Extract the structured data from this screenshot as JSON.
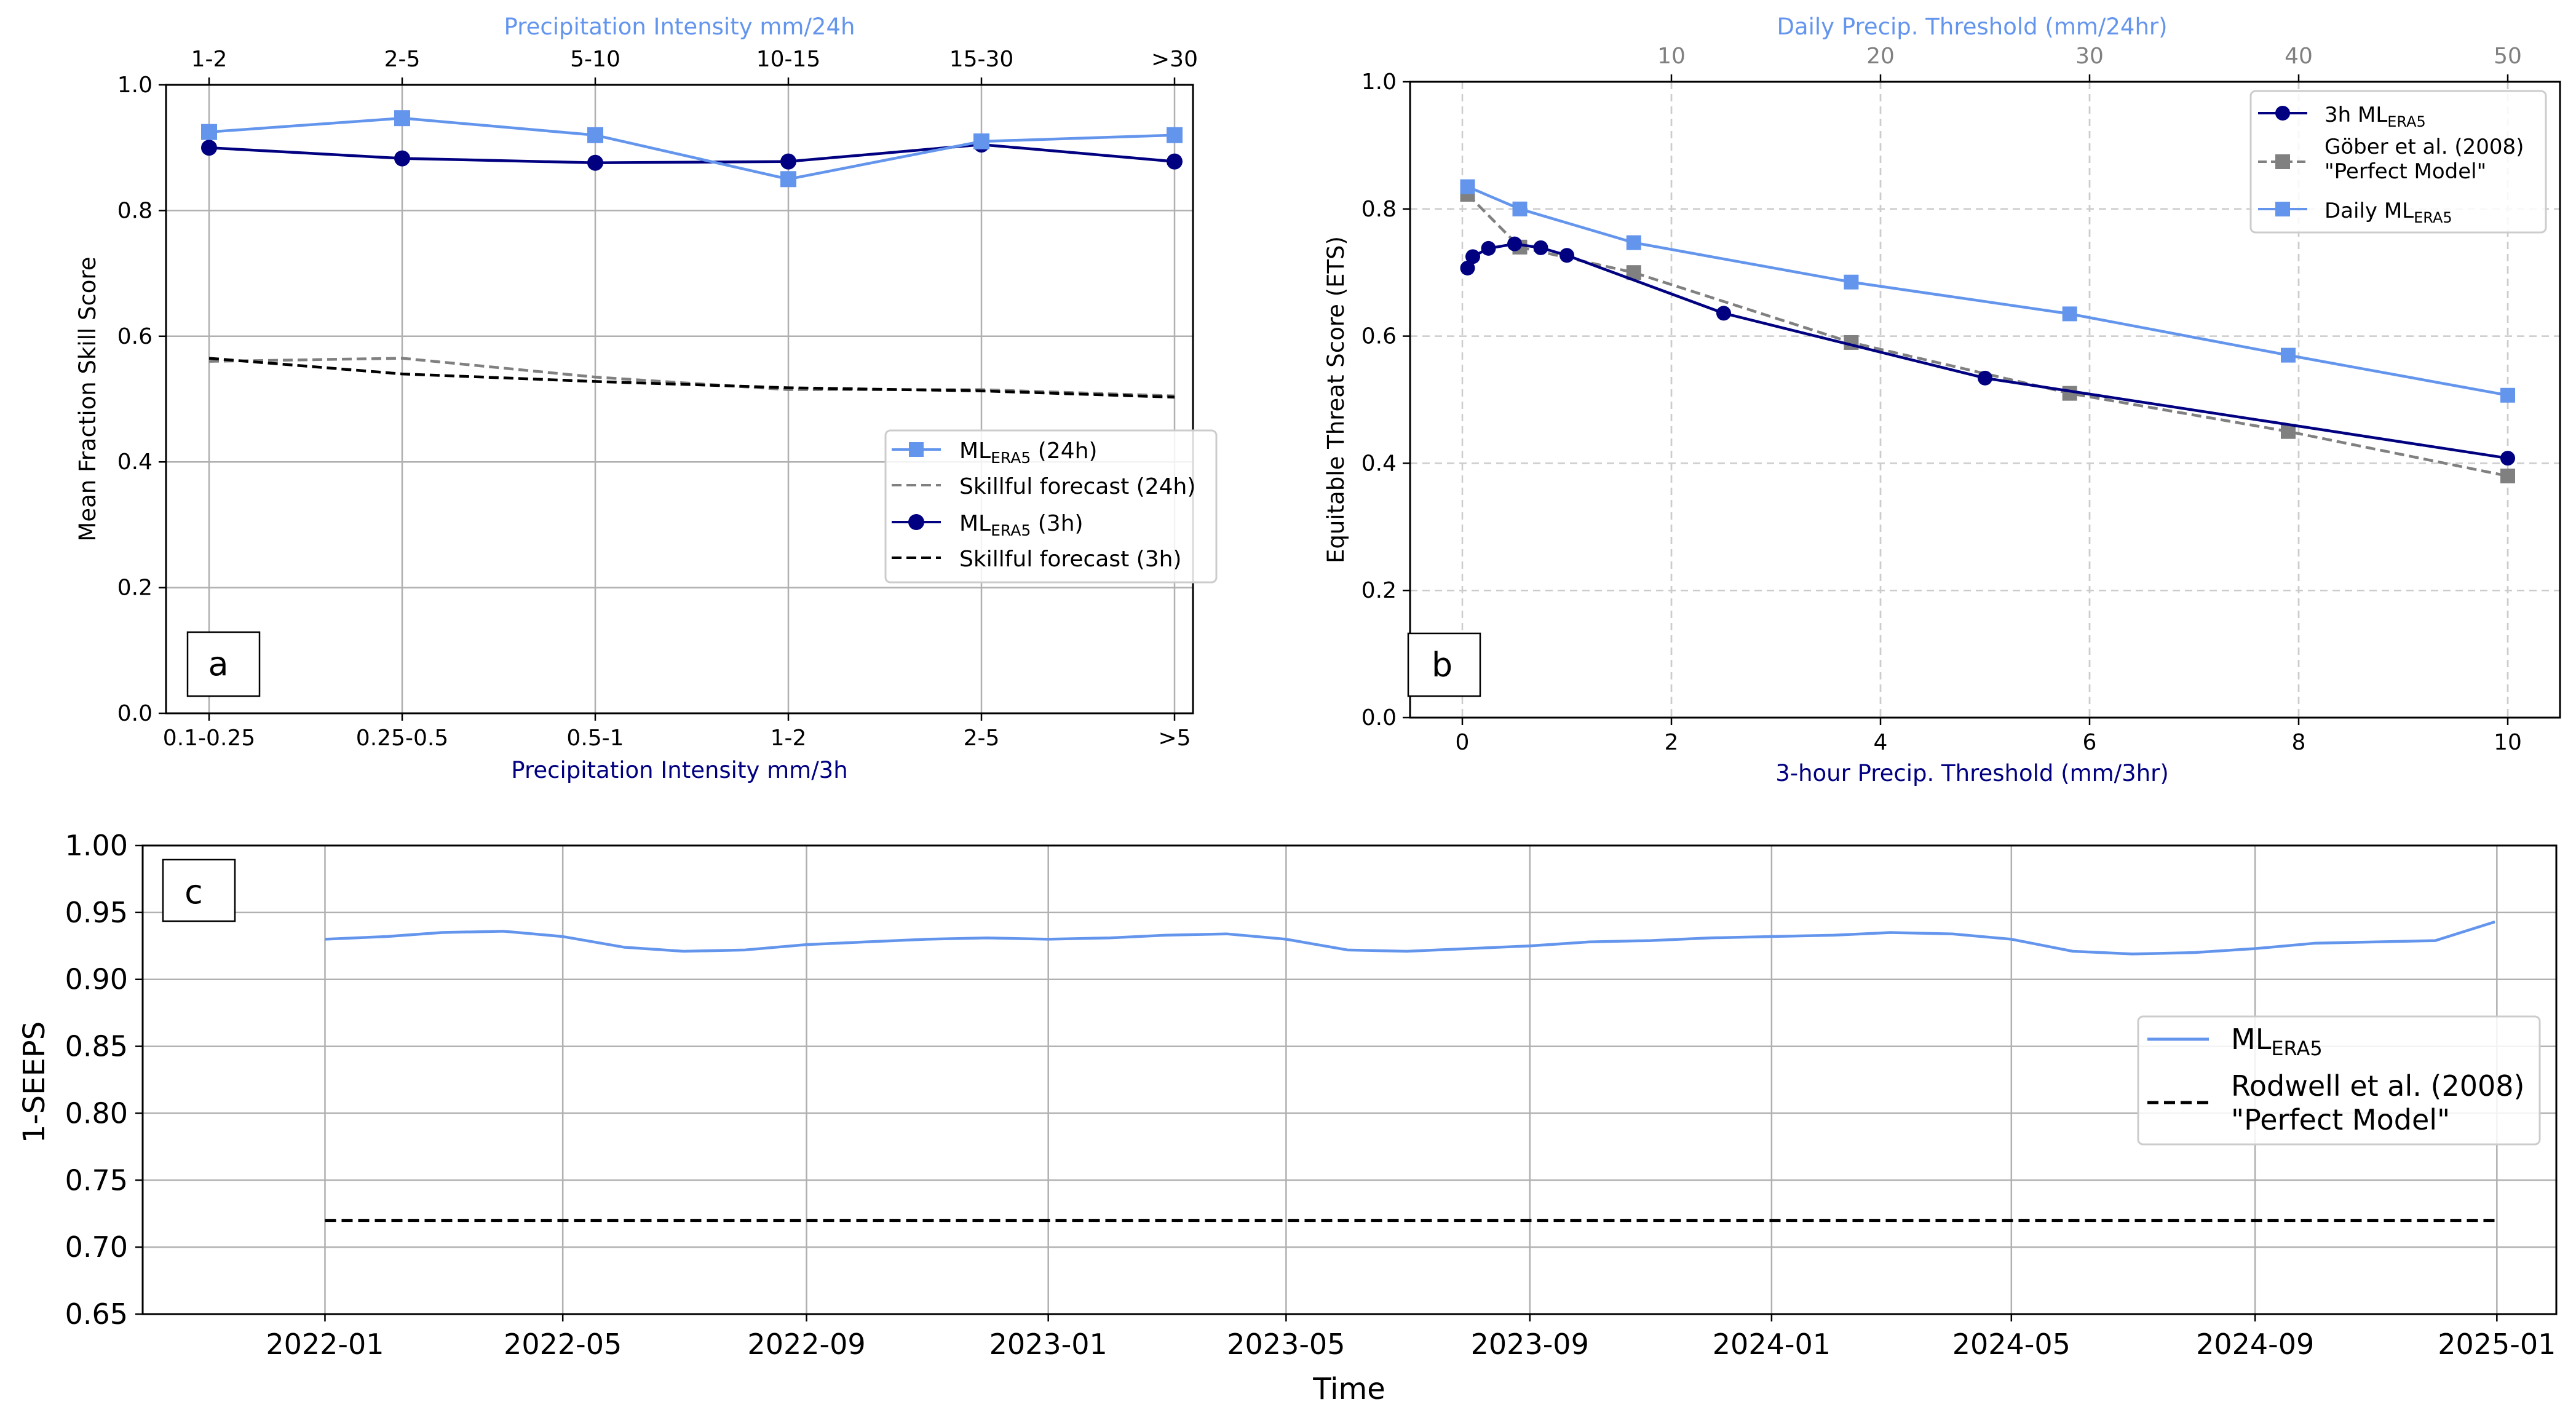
{
  "figure": {
    "colors": {
      "ml_24h": "#6495ED",
      "ml_3h": "#000080",
      "skill_24h": "#808080",
      "skill_3h": "#000000",
      "gober": "#808080",
      "grid": "#b0b0b0"
    },
    "panels": {
      "a": {
        "label": "a",
        "top_xlabel": "Precipitation Intensity mm/24h",
        "top_ticks": [
          "1-2",
          "2-5",
          "5-10",
          "10-15",
          "15-30",
          ">30"
        ],
        "xlabel": "Precipitation Intensity mm/3h",
        "ylabel": "Mean Fraction Skill Score",
        "legend": [
          "ML",
          "ERA5",
          " (24h)",
          "Skillful forecast (24h)",
          "ML",
          "ERA5",
          " (3h)",
          "Skillful forecast (3h)"
        ]
      },
      "b": {
        "label": "b",
        "top_xlabel": "Daily Precip. Threshold (mm/24hr)",
        "xlabel": "3-hour Precip. Threshold (mm/3hr)",
        "ylabel": "Equitable Threat Score (ETS)",
        "legend": [
          "3h ML",
          "ERA5",
          "Göber et al. (2008)",
          "\"Perfect Model\"",
          "Daily ML",
          "ERA5"
        ]
      },
      "c": {
        "label": "c",
        "xlabel": "Time",
        "ylabel": "1-SEEPS",
        "legend": [
          "ML",
          "ERA5",
          "Rodwell et al. (2008)",
          "\"Perfect Model\""
        ]
      }
    }
  },
  "chart_data": [
    {
      "type": "line",
      "panel": "a",
      "categories": [
        "0.1-0.25",
        "0.25-0.5",
        "0.5-1",
        "1-2",
        "2-5",
        ">5"
      ],
      "top_categories": [
        "1-2",
        "2-5",
        "5-10",
        "10-15",
        "15-30",
        ">30"
      ],
      "ylim": [
        0,
        1.0
      ],
      "yticks": [
        0.0,
        0.2,
        0.4,
        0.6,
        0.8,
        1.0
      ],
      "grid": true,
      "legend_position": "center-right",
      "series": [
        {
          "name": "ML_ERA5 (24h)",
          "values": [
            0.925,
            0.947,
            0.92,
            0.85,
            0.91,
            0.92
          ],
          "marker": "square",
          "style": "solid",
          "color": "#6495ED"
        },
        {
          "name": "Skillful forecast (24h)",
          "values": [
            0.56,
            0.565,
            0.535,
            0.515,
            0.515,
            0.505
          ],
          "style": "dashed",
          "color": "#808080"
        },
        {
          "name": "ML_ERA5 (3h)",
          "values": [
            0.9,
            0.883,
            0.876,
            0.878,
            0.905,
            0.878
          ],
          "marker": "circle",
          "style": "solid",
          "color": "#000080"
        },
        {
          "name": "Skillful forecast (3h)",
          "values": [
            0.565,
            0.54,
            0.528,
            0.518,
            0.513,
            0.503
          ],
          "style": "dashed",
          "color": "#000000"
        }
      ]
    },
    {
      "type": "line",
      "panel": "b",
      "xlim": [
        -0.5,
        10.5
      ],
      "xticks": [
        0,
        2,
        4,
        6,
        8,
        10
      ],
      "top_xticks": [
        10,
        20,
        30,
        40,
        50
      ],
      "ylim": [
        0,
        1.0
      ],
      "yticks": [
        0.0,
        0.2,
        0.4,
        0.6,
        0.8,
        1.0
      ],
      "grid": true,
      "legend_position": "top-right",
      "series": [
        {
          "name": "3h ML_ERA5",
          "marker": "circle",
          "style": "solid",
          "color": "#000080",
          "x": [
            0.05,
            0.1,
            0.25,
            0.5,
            0.75,
            1.0,
            2.5,
            5.0,
            10.0
          ],
          "y": [
            0.707,
            0.725,
            0.738,
            0.745,
            0.739,
            0.727,
            0.636,
            0.534,
            0.408
          ]
        },
        {
          "name": "Göber et al. (2008) \"Perfect Model\"",
          "marker": "square",
          "style": "dashed",
          "color": "#808080",
          "x": [
            0.05,
            0.55,
            1.64,
            3.72,
            5.81,
            7.9,
            10.0
          ],
          "y": [
            0.823,
            0.74,
            0.7,
            0.59,
            0.51,
            0.45,
            0.38
          ]
        },
        {
          "name": "Daily ML_ERA5",
          "marker": "square",
          "style": "solid",
          "color": "#6495ED",
          "x": [
            0.05,
            0.55,
            1.64,
            3.72,
            5.81,
            7.9,
            10.0
          ],
          "y": [
            0.835,
            0.8,
            0.747,
            0.685,
            0.635,
            0.57,
            0.507
          ]
        }
      ]
    },
    {
      "type": "line",
      "panel": "c",
      "xlim": [
        "2021-10-01",
        "2025-01-31"
      ],
      "xticks": [
        "2022-01",
        "2022-05",
        "2022-09",
        "2023-01",
        "2023-05",
        "2023-09",
        "2024-01",
        "2024-05",
        "2024-09",
        "2025-01"
      ],
      "ylim": [
        0.65,
        1.0
      ],
      "yticks": [
        0.65,
        0.7,
        0.75,
        0.8,
        0.85,
        0.9,
        0.95,
        1.0
      ],
      "grid": true,
      "legend_position": "center-right",
      "series": [
        {
          "name": "ML_ERA5",
          "style": "solid",
          "color": "#6495ED",
          "x": [
            "2022-01-01",
            "2022-02-01",
            "2022-03-01",
            "2022-04-01",
            "2022-05-01",
            "2022-06-01",
            "2022-07-01",
            "2022-08-01",
            "2022-09-01",
            "2022-10-01",
            "2022-11-01",
            "2022-12-01",
            "2023-01-01",
            "2023-02-01",
            "2023-03-01",
            "2023-04-01",
            "2023-05-01",
            "2023-06-01",
            "2023-07-01",
            "2023-08-01",
            "2023-09-01",
            "2023-10-01",
            "2023-11-01",
            "2023-12-01",
            "2024-01-01",
            "2024-02-01",
            "2024-03-01",
            "2024-04-01",
            "2024-05-01",
            "2024-06-01",
            "2024-07-01",
            "2024-08-01",
            "2024-09-01",
            "2024-10-01",
            "2024-11-01",
            "2024-12-01",
            "2024-12-31"
          ],
          "y": [
            0.93,
            0.932,
            0.935,
            0.936,
            0.932,
            0.924,
            0.921,
            0.922,
            0.926,
            0.928,
            0.93,
            0.931,
            0.93,
            0.931,
            0.933,
            0.934,
            0.93,
            0.922,
            0.921,
            0.923,
            0.925,
            0.928,
            0.929,
            0.931,
            0.932,
            0.933,
            0.935,
            0.934,
            0.93,
            0.921,
            0.919,
            0.92,
            0.923,
            0.927,
            0.928,
            0.929,
            0.943
          ]
        },
        {
          "name": "Rodwell et al. (2008) \"Perfect Model\"",
          "style": "dashed",
          "color": "#000000",
          "x": [
            "2022-01-01",
            "2024-12-31"
          ],
          "y": [
            0.72,
            0.72
          ]
        }
      ]
    }
  ]
}
